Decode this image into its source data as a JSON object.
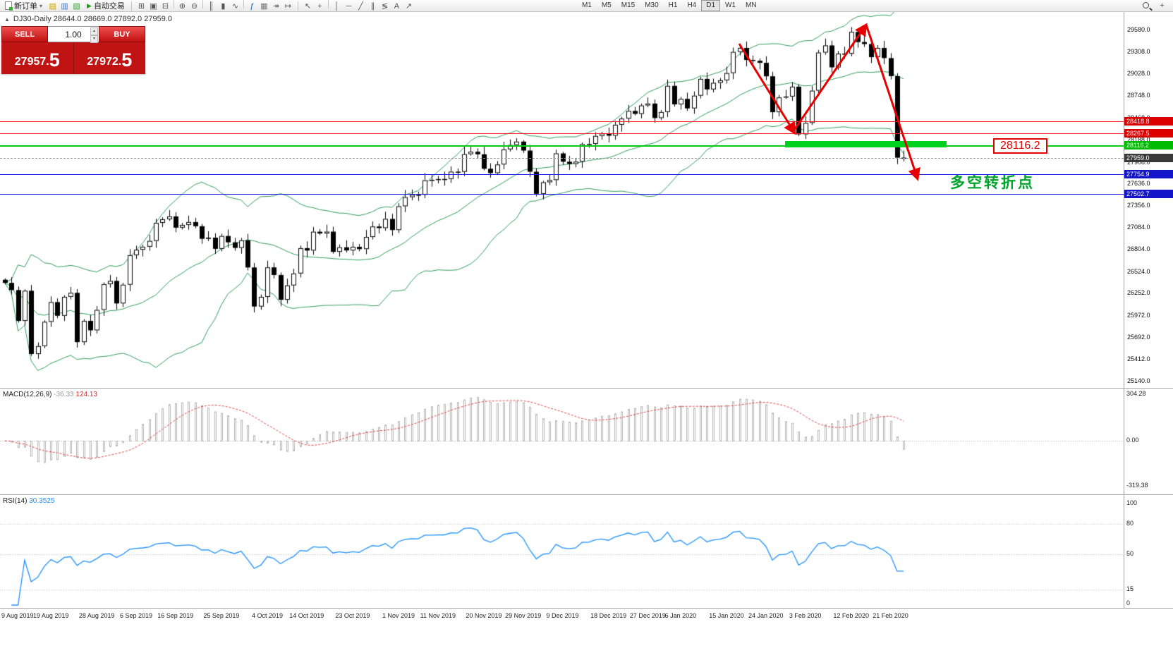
{
  "toolbar": {
    "new_order_label": "新订单",
    "auto_trading_label": "自动交易",
    "icons_left": [
      {
        "name": "market-watch-icon",
        "glyph": "▤",
        "color": "#c8a000"
      },
      {
        "name": "navigator-icon",
        "glyph": "▥",
        "color": "#2e7dd2"
      },
      {
        "name": "terminal-icon",
        "glyph": "▧",
        "color": "#3aa03a"
      }
    ],
    "icons_mid": [
      {
        "name": "tile-windows-icon",
        "glyph": "⊞"
      },
      {
        "name": "cascade-windows-icon",
        "glyph": "▣"
      },
      {
        "name": "arrange-windows-icon",
        "glyph": "⊟"
      },
      {
        "sep": true
      },
      {
        "name": "zoom-in-icon",
        "glyph": "⊕"
      },
      {
        "name": "zoom-out-icon",
        "glyph": "⊖"
      },
      {
        "sep": true
      },
      {
        "name": "bar-chart-icon",
        "glyph": "║"
      },
      {
        "name": "candlestick-chart-icon",
        "glyph": "▮"
      },
      {
        "name": "line-chart-icon",
        "glyph": "∿"
      },
      {
        "sep": true
      },
      {
        "name": "indicators-icon",
        "glyph": "ƒ",
        "color": "#1565c0"
      },
      {
        "name": "grid-icon",
        "glyph": "▦",
        "color": "#777777"
      },
      {
        "name": "auto-scroll-icon",
        "glyph": "↠"
      },
      {
        "name": "chart-shift-icon",
        "glyph": "↦"
      }
    ],
    "tools": [
      {
        "name": "cursor-icon",
        "glyph": "↖"
      },
      {
        "name": "crosshair-icon",
        "glyph": "+"
      },
      {
        "sep": true
      },
      {
        "name": "vertical-line-icon",
        "glyph": "│"
      },
      {
        "name": "horizontal-line-icon",
        "glyph": "─"
      },
      {
        "name": "trendline-icon",
        "glyph": "╱"
      },
      {
        "name": "channel-icon",
        "glyph": "∥"
      },
      {
        "name": "fibonacci-icon",
        "glyph": "≶"
      },
      {
        "name": "text-icon",
        "glyph": "A"
      },
      {
        "name": "arrow-tool-icon",
        "glyph": "↗"
      }
    ],
    "timeframes": [
      "M1",
      "M5",
      "M15",
      "M30",
      "H1",
      "H4",
      "D1",
      "W1",
      "MN"
    ],
    "active_timeframe": "D1",
    "right_icons": [
      {
        "name": "search-icon",
        "cls": "mag"
      },
      {
        "name": "add-indicator-icon",
        "glyph": "+"
      }
    ]
  },
  "symbol_header": {
    "text": "DJ30-Daily 28644.0 28669.0 27892.0 27959.0"
  },
  "trade_panel": {
    "sell_label": "SELL",
    "buy_label": "BUY",
    "volume": "1.00",
    "sell_price_main": "27957.",
    "sell_price_big": "5",
    "buy_price_main": "27972.",
    "buy_price_big": "5"
  },
  "annotations": {
    "price_label": "28116.2",
    "cn_text": "多空转折点"
  },
  "main_axis": {
    "ticks": [
      "29580.0",
      "29308.0",
      "29028.0",
      "28748.0",
      "28468.0",
      "28188.0",
      "27908.0",
      "27636.0",
      "27356.0",
      "27084.0",
      "26804.0",
      "26524.0",
      "26252.0",
      "25972.0",
      "25692.0",
      "25412.0",
      "25140.0"
    ]
  },
  "price_tags": [
    {
      "name": "resistance-tag-1",
      "value": "28418.8",
      "bg": "#dc0000"
    },
    {
      "name": "resistance-tag-2",
      "value": "28267.5",
      "bg": "#dc0000"
    },
    {
      "name": "support-tag-green",
      "value": "28116.2",
      "bg": "#00bc00"
    },
    {
      "name": "bid-price-tag",
      "value": "27959.0",
      "bg": "#3a3a3a"
    },
    {
      "name": "support-tag-blue-1",
      "value": "27754.9",
      "bg": "#1414c8"
    },
    {
      "name": "support-tag-blue-2",
      "value": "27502.7",
      "bg": "#1414c8"
    }
  ],
  "hlines": [
    {
      "name": "resistance-line-1",
      "value": 28418.8,
      "color": "#ff1e1e",
      "w": 1
    },
    {
      "name": "resistance-line-2",
      "value": 28267.5,
      "color": "#ff1e1e",
      "w": 1
    },
    {
      "name": "support-line-green",
      "value": 28116.2,
      "color": "#00cc10",
      "w": 2
    },
    {
      "name": "bid-price-line",
      "value": 27959.0,
      "color": "#9a9a9a",
      "w": 1,
      "dash": true
    },
    {
      "name": "support-line-blue-1",
      "value": 27754.9,
      "color": "#2222e8",
      "w": 1
    },
    {
      "name": "support-line-blue-2",
      "value": 27502.7,
      "color": "#2222e8",
      "w": 1
    }
  ],
  "macd": {
    "label": "MACD(12,26,9)",
    "value_main": "-36.33",
    "value_signal": "124.13",
    "axis": [
      "304.28",
      "0.00",
      "-319.38"
    ]
  },
  "rsi": {
    "label": "RSI(14)",
    "value": "30.3525",
    "axis": [
      "100",
      "80",
      "50",
      "15",
      "0"
    ]
  },
  "chart_data": {
    "type": "candlestick",
    "symbol": "DJ30",
    "timeframe": "Daily",
    "ohlc_current": {
      "open": "28644.0",
      "high": "28669.0",
      "low": "27892.0",
      "close": "27959.0"
    },
    "y_axis_range": [
      25140,
      29580
    ],
    "closes": [
      26378,
      26287,
      25897,
      26279,
      25479,
      25579,
      25886,
      26135,
      25962,
      26202,
      26252,
      25629,
      25898,
      25778,
      26036,
      26362,
      26403,
      26118,
      26355,
      26728,
      26797,
      26835,
      26909,
      27137,
      27182,
      27219,
      27076,
      27110,
      27147,
      27095,
      26935,
      26950,
      26808,
      26971,
      26891,
      26820,
      26916,
      26573,
      26079,
      26201,
      26574,
      26478,
      26164,
      26346,
      26497,
      26817,
      26787,
      27025,
      27002,
      27026,
      26770,
      26828,
      26788,
      26834,
      26805,
      26958,
      27091,
      27071,
      27187,
      27046,
      27347,
      27462,
      27493,
      27492,
      27675,
      27681,
      27691,
      27692,
      27784,
      27782,
      28005,
      28036,
      28004,
      27821,
      27766,
      27875,
      28066,
      28121,
      28164,
      28051,
      27783,
      27503,
      27650,
      27678,
      28015,
      27910,
      27882,
      27911,
      28132,
      28135,
      28236,
      28267,
      28239,
      28377,
      28455,
      28552,
      28515,
      28621,
      28645,
      28462,
      28538,
      28869,
      28635,
      28704,
      28584,
      28745,
      28957,
      28824,
      28907,
      28939,
      29030,
      29298,
      29348,
      29196,
      29186,
      29160,
      28990,
      28536,
      28723,
      28734,
      28859,
      28256,
      28400,
      28808,
      29290,
      29380,
      29103,
      29277,
      29276,
      29551,
      29423,
      29398,
      29232,
      29348,
      29220,
      28992,
      27961,
      27959
    ],
    "date_ticks": [
      {
        "label": "9 Aug 2019",
        "i": 1
      },
      {
        "label": "19 Aug 2019",
        "i": 7
      },
      {
        "label": "28 Aug 2019",
        "i": 14
      },
      {
        "label": "6 Sep 2019",
        "i": 20
      },
      {
        "label": "16 Sep 2019",
        "i": 26
      },
      {
        "label": "25 Sep 2019",
        "i": 33
      },
      {
        "label": "4 Oct 2019",
        "i": 40
      },
      {
        "label": "14 Oct 2019",
        "i": 46
      },
      {
        "label": "23 Oct 2019",
        "i": 53
      },
      {
        "label": "1 Nov 2019",
        "i": 60
      },
      {
        "label": "11 Nov 2019",
        "i": 66
      },
      {
        "label": "20 Nov 2019",
        "i": 73
      },
      {
        "label": "29 Nov 2019",
        "i": 79
      },
      {
        "label": "9 Dec 2019",
        "i": 85
      },
      {
        "label": "18 Dec 2019",
        "i": 92
      },
      {
        "label": "27 Dec 2019",
        "i": 98
      },
      {
        "label": "6 Jan 2020",
        "i": 103
      },
      {
        "label": "15 Jan 2020",
        "i": 110
      },
      {
        "label": "24 Jan 2020",
        "i": 116
      },
      {
        "label": "3 Feb 2020",
        "i": 122
      },
      {
        "label": "12 Feb 2020",
        "i": 129
      },
      {
        "label": "21 Feb 2020",
        "i": 135
      }
    ],
    "indicators": {
      "bollinger": {
        "period": 20,
        "deviation": 2
      },
      "macd": {
        "fast": 12,
        "slow": 26,
        "signal": 9,
        "main": -36.33,
        "signal_value": 124.13
      },
      "rsi": {
        "period": 14,
        "value": 30.3525
      }
    },
    "levels": {
      "resistance": [
        28418.8,
        28267.5
      ],
      "support_zone": 28116.2,
      "bid": 27959.0,
      "blue_lines": [
        27754.9,
        27502.7
      ]
    }
  }
}
